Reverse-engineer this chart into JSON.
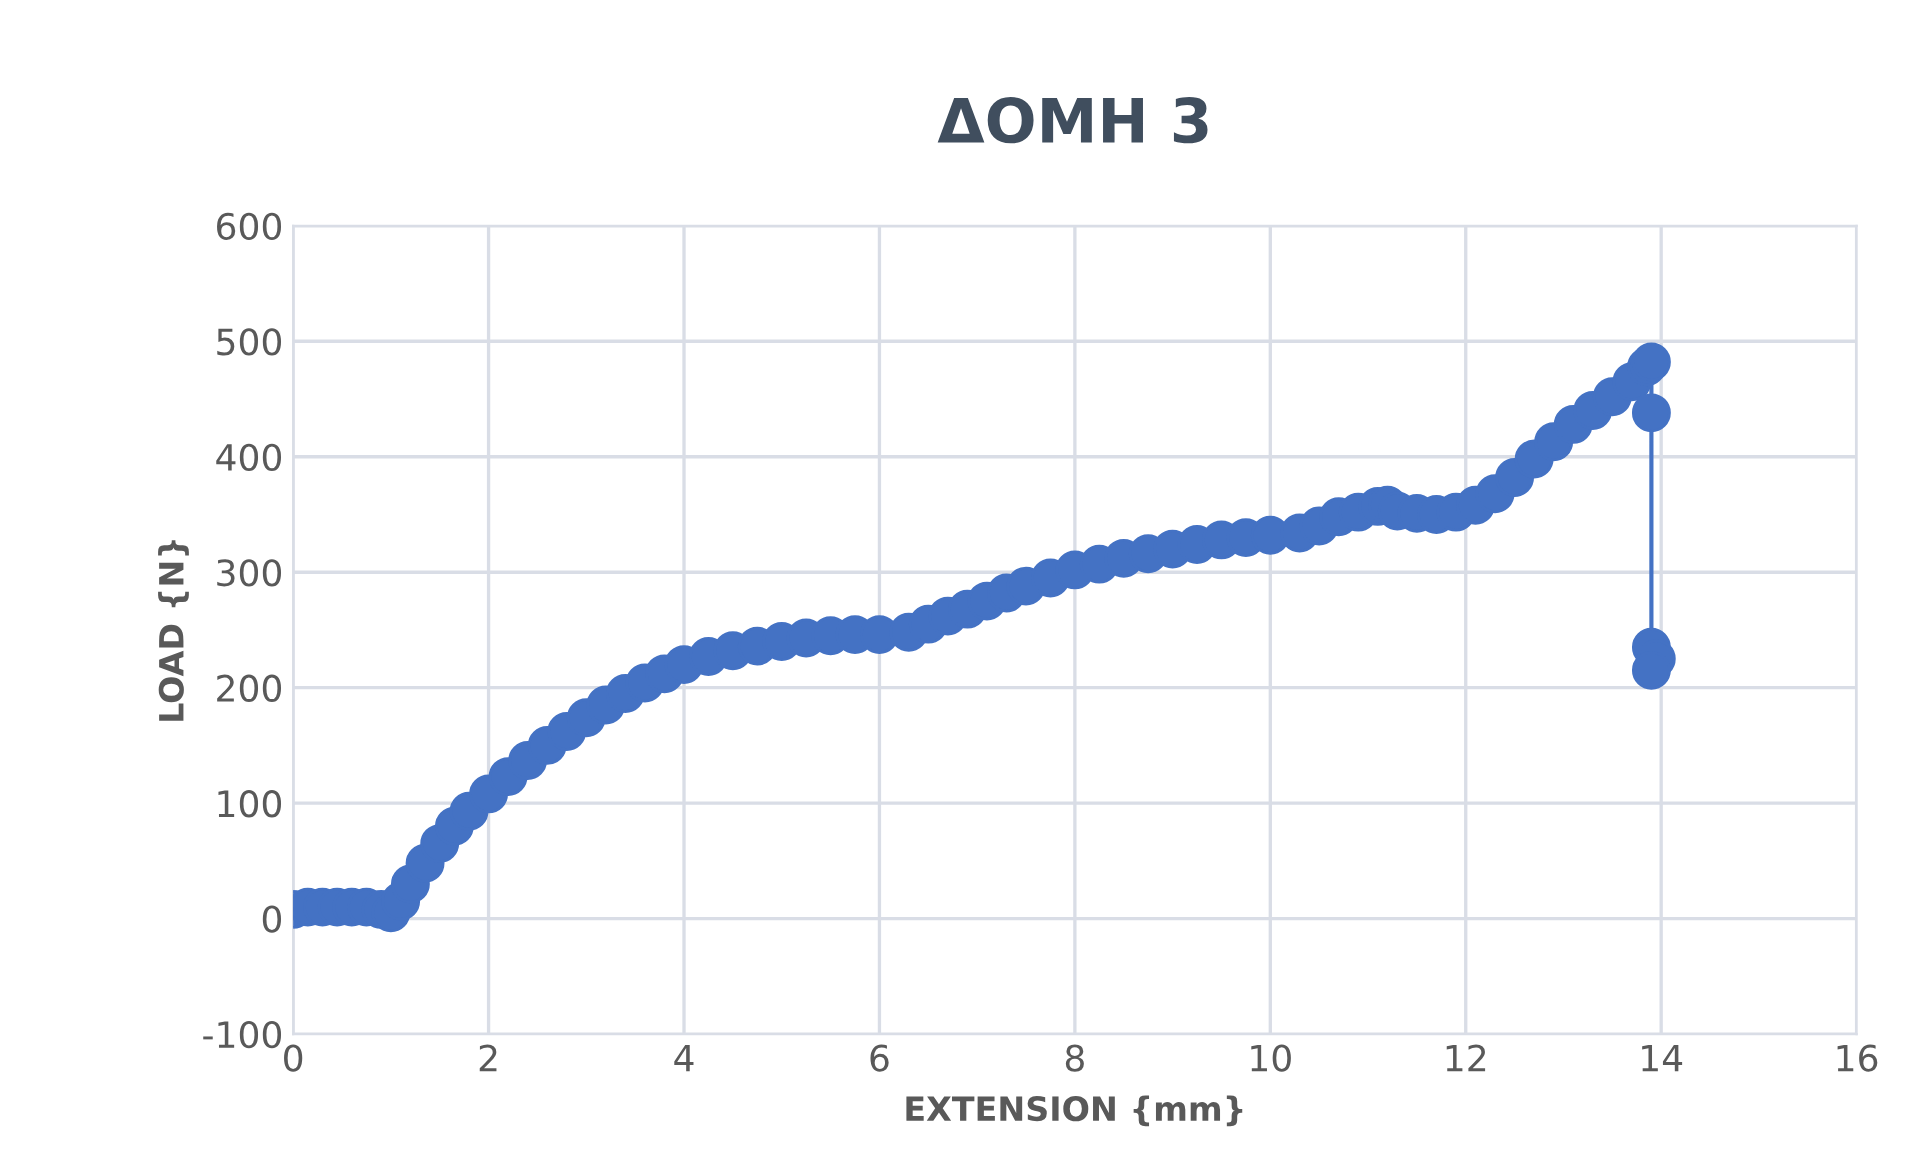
{
  "chart_data": {
    "type": "line",
    "title": "ΔΟΜΗ 3",
    "xlabel": "EXTENSION {mm}",
    "ylabel": "LOAD {N}",
    "xlim": [
      0,
      16
    ],
    "xticks": [
      0,
      2,
      4,
      6,
      8,
      10,
      12,
      14,
      16
    ],
    "ylim": [
      -100,
      600
    ],
    "yticks": [
      -100,
      0,
      100,
      200,
      300,
      400,
      500,
      600
    ],
    "grid": true,
    "marker": "circle",
    "line_style": "solid",
    "series": [
      {
        "color": "#4472c4",
        "x": [
          0,
          0.15,
          0.3,
          0.45,
          0.6,
          0.75,
          0.9,
          1.0,
          1.1,
          1.2,
          1.35,
          1.5,
          1.65,
          1.8,
          2.0,
          2.2,
          2.4,
          2.6,
          2.8,
          3.0,
          3.2,
          3.4,
          3.6,
          3.8,
          4.0,
          4.25,
          4.5,
          4.75,
          5.0,
          5.25,
          5.5,
          5.75,
          6.0,
          6.3,
          6.5,
          6.7,
          6.9,
          7.1,
          7.3,
          7.5,
          7.75,
          8.0,
          8.25,
          8.5,
          8.75,
          9.0,
          9.25,
          9.5,
          9.75,
          10.0,
          10.3,
          10.5,
          10.7,
          10.9,
          11.1,
          11.2,
          11.3,
          11.5,
          11.7,
          11.9,
          12.1,
          12.3,
          12.5,
          12.7,
          12.9,
          13.1,
          13.3,
          13.5,
          13.7,
          13.85,
          13.9,
          13.9,
          13.9,
          13.95,
          13.9
        ],
        "values": [
          8,
          10,
          10,
          10,
          10,
          10,
          8,
          5,
          15,
          30,
          48,
          65,
          80,
          93,
          108,
          123,
          137,
          150,
          162,
          174,
          185,
          195,
          204,
          212,
          220,
          227,
          232,
          236,
          240,
          243,
          245,
          246,
          246,
          248,
          255,
          262,
          268,
          275,
          282,
          288,
          295,
          302,
          307,
          312,
          316,
          320,
          324,
          328,
          330,
          332,
          334,
          340,
          348,
          352,
          357,
          358,
          353,
          351,
          350,
          352,
          358,
          368,
          382,
          398,
          413,
          428,
          440,
          452,
          465,
          478,
          482,
          438,
          235,
          225,
          215
        ]
      }
    ]
  }
}
